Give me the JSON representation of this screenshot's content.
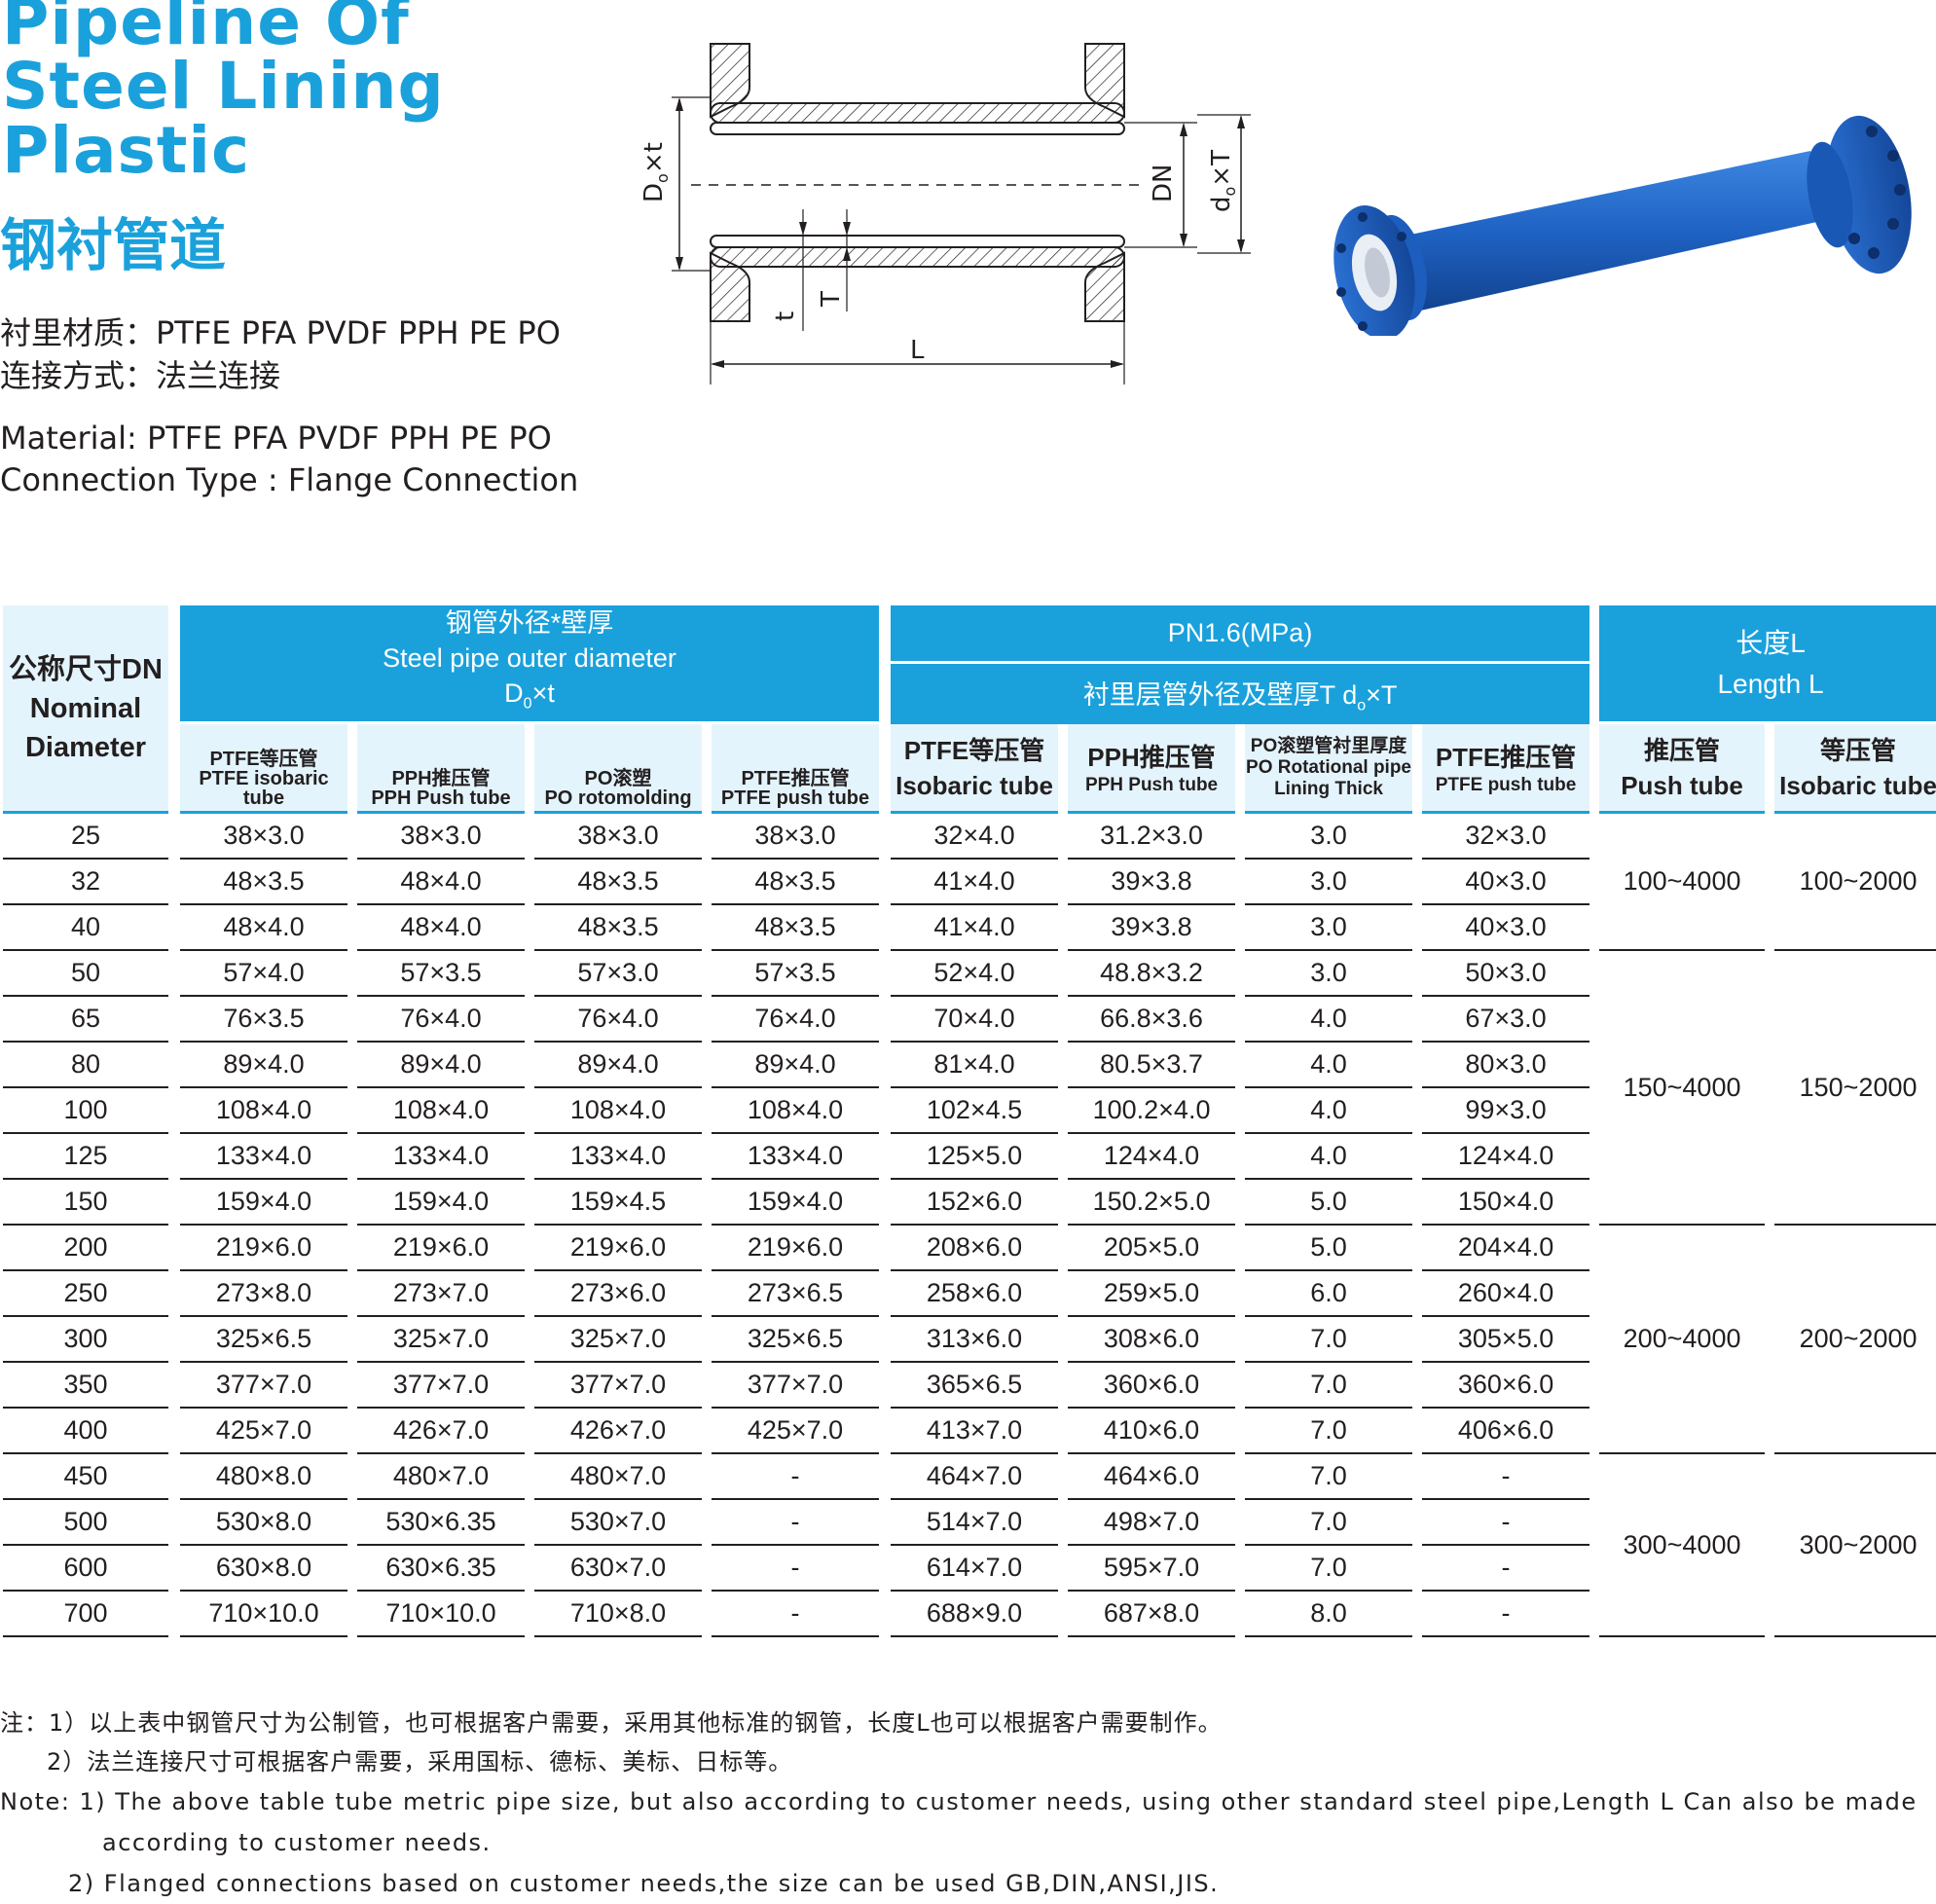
{
  "title": {
    "en_lines": [
      "Pipeline Of",
      "Steel Lining",
      "Plastic"
    ],
    "cn": "钢衬管道"
  },
  "info": {
    "cn_material": "衬里材质：PTFE  PFA  PVDF  PPH  PE  PO",
    "cn_connection": "连接方式：法兰连接",
    "en_material": "Material: PTFE  PFA  PVDF  PPH  PE  PO",
    "en_connection": "Connection Type : Flange Connection"
  },
  "diagram": {
    "label_dxt": "D",
    "label_dxt_sub": "o",
    "label_dxt_rest": "×t",
    "label_dn": "DN",
    "label_dot": "d",
    "label_dot_sub": "o",
    "label_dot_rest": "×T",
    "label_t": "t",
    "label_T": "T",
    "label_L": "L"
  },
  "colors": {
    "accent": "#1aa1dc",
    "header_light": "#e4f4fc",
    "pipe_blue": "#1b5fc0",
    "text": "#231f20"
  },
  "table": {
    "h_nominal": [
      "公称尺寸DN",
      "Nominal",
      "Diameter"
    ],
    "h_steel": [
      "钢管外径*壁厚",
      "Steel pipe outer diameter"
    ],
    "h_steel_formula": "D",
    "h_steel_formula_sub": "0",
    "h_steel_formula_rest": "×t",
    "h_pn": "PN1.6(MPa)",
    "h_lining": "衬里层管外径及壁厚T  d",
    "h_lining_sub": "o",
    "h_lining_rest": "×T",
    "h_length": [
      "长度L",
      "Length L"
    ],
    "steel_sub": [
      [
        "PTFE等压管",
        "PTFE isobaric tube"
      ],
      [
        "PPH推压管",
        "PPH Push tube"
      ],
      [
        "PO滚塑",
        "PO rotomolding"
      ],
      [
        "PTFE推压管",
        "PTFE push tube"
      ]
    ],
    "lining_sub": [
      [
        "PTFE等压管",
        "Isobaric tube"
      ],
      [
        "PPH推压管",
        "PPH Push tube"
      ],
      [
        "PO滚塑管衬里厚度",
        "PO Rotational pipe",
        "Lining Thick"
      ],
      [
        "PTFE推压管",
        "PTFE push tube"
      ]
    ],
    "length_sub": [
      [
        "推压管",
        "Push tube"
      ],
      [
        "等压管",
        "Isobaric tube"
      ]
    ],
    "rows": [
      [
        "25",
        "38×3.0",
        "38×3.0",
        "38×3.0",
        "38×3.0",
        "32×4.0",
        "31.2×3.0",
        "3.0",
        "32×3.0"
      ],
      [
        "32",
        "48×3.5",
        "48×4.0",
        "48×3.5",
        "48×3.5",
        "41×4.0",
        "39×3.8",
        "3.0",
        "40×3.0"
      ],
      [
        "40",
        "48×4.0",
        "48×4.0",
        "48×3.5",
        "48×3.5",
        "41×4.0",
        "39×3.8",
        "3.0",
        "40×3.0"
      ],
      [
        "50",
        "57×4.0",
        "57×3.5",
        "57×3.0",
        "57×3.5",
        "52×4.0",
        "48.8×3.2",
        "3.0",
        "50×3.0"
      ],
      [
        "65",
        "76×3.5",
        "76×4.0",
        "76×4.0",
        "76×4.0",
        "70×4.0",
        "66.8×3.6",
        "4.0",
        "67×3.0"
      ],
      [
        "80",
        "89×4.0",
        "89×4.0",
        "89×4.0",
        "89×4.0",
        "81×4.0",
        "80.5×3.7",
        "4.0",
        "80×3.0"
      ],
      [
        "100",
        "108×4.0",
        "108×4.0",
        "108×4.0",
        "108×4.0",
        "102×4.5",
        "100.2×4.0",
        "4.0",
        "99×3.0"
      ],
      [
        "125",
        "133×4.0",
        "133×4.0",
        "133×4.0",
        "133×4.0",
        "125×5.0",
        "124×4.0",
        "4.0",
        "124×4.0"
      ],
      [
        "150",
        "159×4.0",
        "159×4.0",
        "159×4.5",
        "159×4.0",
        "152×6.0",
        "150.2×5.0",
        "5.0",
        "150×4.0"
      ],
      [
        "200",
        "219×6.0",
        "219×6.0",
        "219×6.0",
        "219×6.0",
        "208×6.0",
        "205×5.0",
        "5.0",
        "204×4.0"
      ],
      [
        "250",
        "273×8.0",
        "273×7.0",
        "273×6.0",
        "273×6.5",
        "258×6.0",
        "259×5.0",
        "6.0",
        "260×4.0"
      ],
      [
        "300",
        "325×6.5",
        "325×7.0",
        "325×7.0",
        "325×6.5",
        "313×6.0",
        "308×6.0",
        "7.0",
        "305×5.0"
      ],
      [
        "350",
        "377×7.0",
        "377×7.0",
        "377×7.0",
        "377×7.0",
        "365×6.5",
        "360×6.0",
        "7.0",
        "360×6.0"
      ],
      [
        "400",
        "425×7.0",
        "426×7.0",
        "426×7.0",
        "425×7.0",
        "413×7.0",
        "410×6.0",
        "7.0",
        "406×6.0"
      ],
      [
        "450",
        "480×8.0",
        "480×7.0",
        "480×7.0",
        "-",
        "464×7.0",
        "464×6.0",
        "7.0",
        "-"
      ],
      [
        "500",
        "530×8.0",
        "530×6.35",
        "530×7.0",
        "-",
        "514×7.0",
        "498×7.0",
        "7.0",
        "-"
      ],
      [
        "600",
        "630×8.0",
        "630×6.35",
        "630×7.0",
        "-",
        "614×7.0",
        "595×7.0",
        "7.0",
        "-"
      ],
      [
        "700",
        "710×10.0",
        "710×10.0",
        "710×8.0",
        "-",
        "688×9.0",
        "687×8.0",
        "8.0",
        "-"
      ]
    ],
    "length_groups": [
      {
        "span": 3,
        "push": "100~4000",
        "iso": "100~2000"
      },
      {
        "span": 6,
        "push": "150~4000",
        "iso": "150~2000"
      },
      {
        "span": 5,
        "push": "200~4000",
        "iso": "200~2000"
      },
      {
        "span": 4,
        "push": "300~4000",
        "iso": "300~2000"
      }
    ]
  },
  "notes": {
    "cn1": "注：1）以上表中钢管尺寸为公制管，也可根据客户需要，采用其他标准的钢管，长度L也可以根据客户需要制作。",
    "cn2": "2）法兰连接尺寸可根据客户需要，采用国标、德标、美标、日标等。",
    "en1a": "Note: 1) The above table tube metric pipe size, but also according to customer needs, using other standard steel pipe,Length L Can also be made",
    "en1b": "according to customer needs.",
    "en2": "2) Flanged connections based on customer needs,the size can be used GB,DIN,ANSI,JIS."
  }
}
